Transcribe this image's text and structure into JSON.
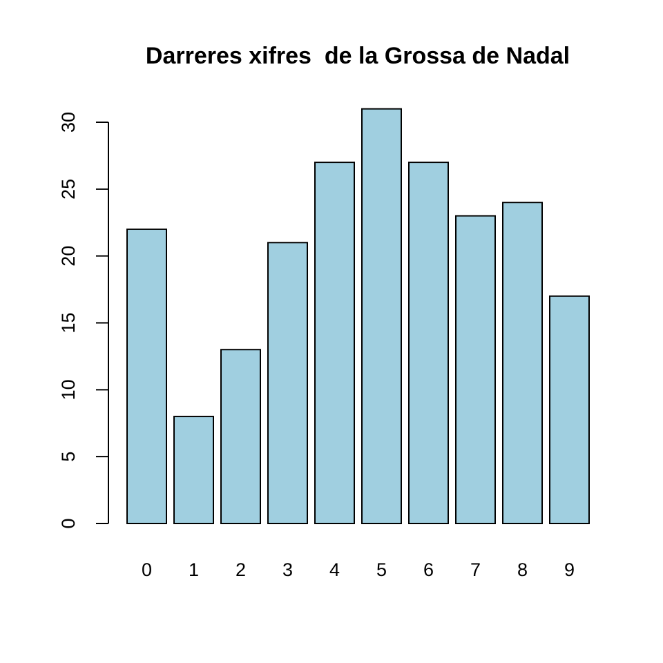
{
  "chart_data": {
    "type": "bar",
    "title": "Darreres xifres  de la Grossa de Nadal",
    "xlabel": "",
    "ylabel": "",
    "categories": [
      "0",
      "1",
      "2",
      "3",
      "4",
      "5",
      "6",
      "7",
      "8",
      "9"
    ],
    "values": [
      22,
      8,
      13,
      21,
      27,
      31,
      27,
      23,
      24,
      17
    ],
    "ylim": [
      0,
      30
    ],
    "yticks": [
      0,
      5,
      10,
      15,
      20,
      25,
      30
    ],
    "ytick_labels": [
      "0",
      "5",
      "10",
      "15",
      "20",
      "25",
      "30"
    ],
    "grid": false,
    "legend": "none",
    "bar_color": "#A0CFE0",
    "edge_color": "#000000"
  }
}
